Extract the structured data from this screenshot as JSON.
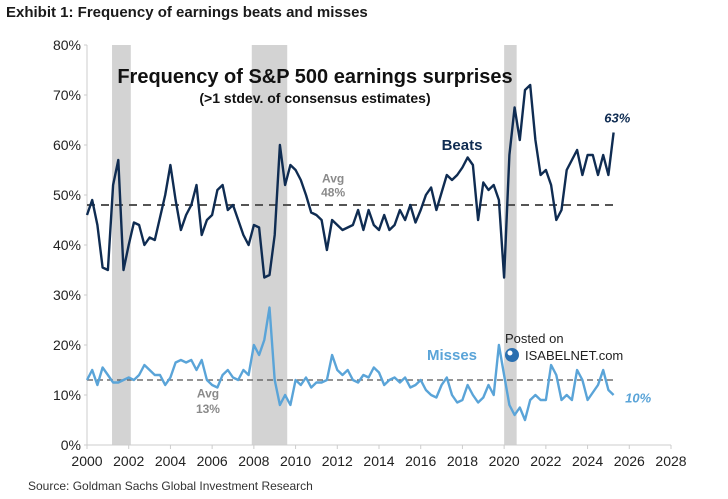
{
  "exhibit_title": "Exhibit 1: Frequency of earnings beats and misses",
  "source": "Source: Goldman Sachs Global Investment Research",
  "watermark": {
    "line1": "Posted on",
    "line2": "ISABELNET.com"
  },
  "colors": {
    "beats": "#0f2c52",
    "misses": "#5aa4d8",
    "recession": "#d3d3d3",
    "avg_line": "#555555",
    "axis": "#cccccc"
  },
  "chart_data": {
    "type": "line",
    "title": "Frequency of S&P 500 earnings surprises",
    "subtitle": "(>1 stdev. of consensus estimates)",
    "xlim": [
      2000,
      2028
    ],
    "ylim": [
      0,
      80
    ],
    "x_ticks": [
      "2000",
      "2002",
      "2004",
      "2006",
      "2008",
      "2010",
      "2012",
      "2014",
      "2016",
      "2018",
      "2020",
      "2022",
      "2024",
      "2026",
      "2028"
    ],
    "y_ticks": [
      "0%",
      "10%",
      "20%",
      "30%",
      "40%",
      "50%",
      "60%",
      "70%",
      "80%"
    ],
    "recessions": [
      [
        2001.2,
        2002.1
      ],
      [
        2007.9,
        2009.6
      ],
      [
        2020.0,
        2020.6
      ]
    ],
    "averages": [
      {
        "series": "Beats",
        "value": 48,
        "label_top": "Avg",
        "label_bottom": "48%"
      },
      {
        "series": "Misses",
        "value": 13,
        "label_top": "Avg",
        "label_bottom": "13%"
      }
    ],
    "series": [
      {
        "name": "Beats",
        "end_label": "63%",
        "x": [
          2000.0,
          2000.25,
          2000.5,
          2000.75,
          2001.0,
          2001.25,
          2001.5,
          2001.75,
          2002.0,
          2002.25,
          2002.5,
          2002.75,
          2003.0,
          2003.25,
          2003.5,
          2003.75,
          2004.0,
          2004.25,
          2004.5,
          2004.75,
          2005.0,
          2005.25,
          2005.5,
          2005.75,
          2006.0,
          2006.25,
          2006.5,
          2006.75,
          2007.0,
          2007.25,
          2007.5,
          2007.75,
          2008.0,
          2008.25,
          2008.5,
          2008.75,
          2009.0,
          2009.25,
          2009.5,
          2009.75,
          2010.0,
          2010.25,
          2010.5,
          2010.75,
          2011.0,
          2011.25,
          2011.5,
          2011.75,
          2012.0,
          2012.25,
          2012.5,
          2012.75,
          2013.0,
          2013.25,
          2013.5,
          2013.75,
          2014.0,
          2014.25,
          2014.5,
          2014.75,
          2015.0,
          2015.25,
          2015.5,
          2015.75,
          2016.0,
          2016.25,
          2016.5,
          2016.75,
          2017.0,
          2017.25,
          2017.5,
          2017.75,
          2018.0,
          2018.25,
          2018.5,
          2018.75,
          2019.0,
          2019.25,
          2019.5,
          2019.75,
          2020.0,
          2020.25,
          2020.5,
          2020.75,
          2021.0,
          2021.25,
          2021.5,
          2021.75,
          2022.0,
          2022.25,
          2022.5,
          2022.75,
          2023.0,
          2023.25,
          2023.5,
          2023.75,
          2024.0,
          2024.25,
          2024.5,
          2024.75,
          2025.0,
          2025.25
        ],
        "values": [
          46,
          49,
          44,
          35.5,
          35,
          52,
          57,
          35,
          40,
          44.5,
          44,
          40,
          41.5,
          41,
          45.5,
          50,
          56,
          49,
          43,
          46,
          48,
          52,
          42,
          45,
          46,
          51,
          52,
          47,
          48,
          45,
          42,
          40,
          44,
          43.5,
          33.5,
          34,
          42,
          60,
          52,
          56,
          55,
          53,
          50,
          46.5,
          46,
          45,
          39,
          45,
          44,
          43,
          43.5,
          44,
          47,
          43,
          47,
          44,
          43,
          46,
          43,
          44,
          47,
          45,
          48,
          44.5,
          47,
          50,
          51.5,
          47,
          50.5,
          54,
          53,
          54,
          55.5,
          57.5,
          56,
          45,
          52.5,
          51,
          52,
          49,
          33.5,
          58,
          67.5,
          61,
          71,
          72,
          61,
          54,
          55,
          52,
          45,
          47,
          55,
          57,
          59,
          54,
          58,
          58,
          54,
          58,
          54,
          62.5
        ]
      },
      {
        "name": "Misses",
        "end_label": "10%",
        "x": [
          2000.0,
          2000.25,
          2000.5,
          2000.75,
          2001.0,
          2001.25,
          2001.5,
          2001.75,
          2002.0,
          2002.25,
          2002.5,
          2002.75,
          2003.0,
          2003.25,
          2003.5,
          2003.75,
          2004.0,
          2004.25,
          2004.5,
          2004.75,
          2005.0,
          2005.25,
          2005.5,
          2005.75,
          2006.0,
          2006.25,
          2006.5,
          2006.75,
          2007.0,
          2007.25,
          2007.5,
          2007.75,
          2008.0,
          2008.25,
          2008.5,
          2008.75,
          2009.0,
          2009.25,
          2009.5,
          2009.75,
          2010.0,
          2010.25,
          2010.5,
          2010.75,
          2011.0,
          2011.25,
          2011.5,
          2011.75,
          2012.0,
          2012.25,
          2012.5,
          2012.75,
          2013.0,
          2013.25,
          2013.5,
          2013.75,
          2014.0,
          2014.25,
          2014.5,
          2014.75,
          2015.0,
          2015.25,
          2015.5,
          2015.75,
          2016.0,
          2016.25,
          2016.5,
          2016.75,
          2017.0,
          2017.25,
          2017.5,
          2017.75,
          2018.0,
          2018.25,
          2018.5,
          2018.75,
          2019.0,
          2019.25,
          2019.5,
          2019.75,
          2020.0,
          2020.25,
          2020.5,
          2020.75,
          2021.0,
          2021.25,
          2021.5,
          2021.75,
          2022.0,
          2022.25,
          2022.5,
          2022.75,
          2023.0,
          2023.25,
          2023.5,
          2023.75,
          2024.0,
          2024.25,
          2024.5,
          2024.75,
          2025.0,
          2025.25
        ],
        "values": [
          13,
          15,
          12,
          15.5,
          14,
          12.5,
          12.5,
          13,
          13.5,
          13,
          14,
          16,
          15,
          14,
          14,
          12,
          13.5,
          16.5,
          17,
          16.5,
          17,
          15,
          17,
          13,
          12,
          11.5,
          14,
          15,
          13.5,
          13,
          15,
          14,
          20,
          18,
          21,
          27.5,
          13,
          8,
          10,
          8,
          13,
          12,
          13.5,
          11.5,
          12.5,
          12.5,
          13,
          18,
          15,
          14,
          15,
          13,
          12.5,
          14,
          13.5,
          15.5,
          14.5,
          12,
          13,
          13.5,
          12.5,
          13.5,
          11.5,
          12,
          13,
          11,
          10,
          9.5,
          12,
          13.5,
          10,
          8.5,
          9,
          12,
          10,
          8.5,
          9.5,
          12,
          10,
          20,
          14,
          8,
          6,
          7.5,
          5,
          9,
          10,
          9,
          9,
          16,
          14,
          9,
          10,
          9,
          15,
          13,
          9,
          10.5,
          12,
          15,
          11,
          10
        ]
      }
    ]
  }
}
